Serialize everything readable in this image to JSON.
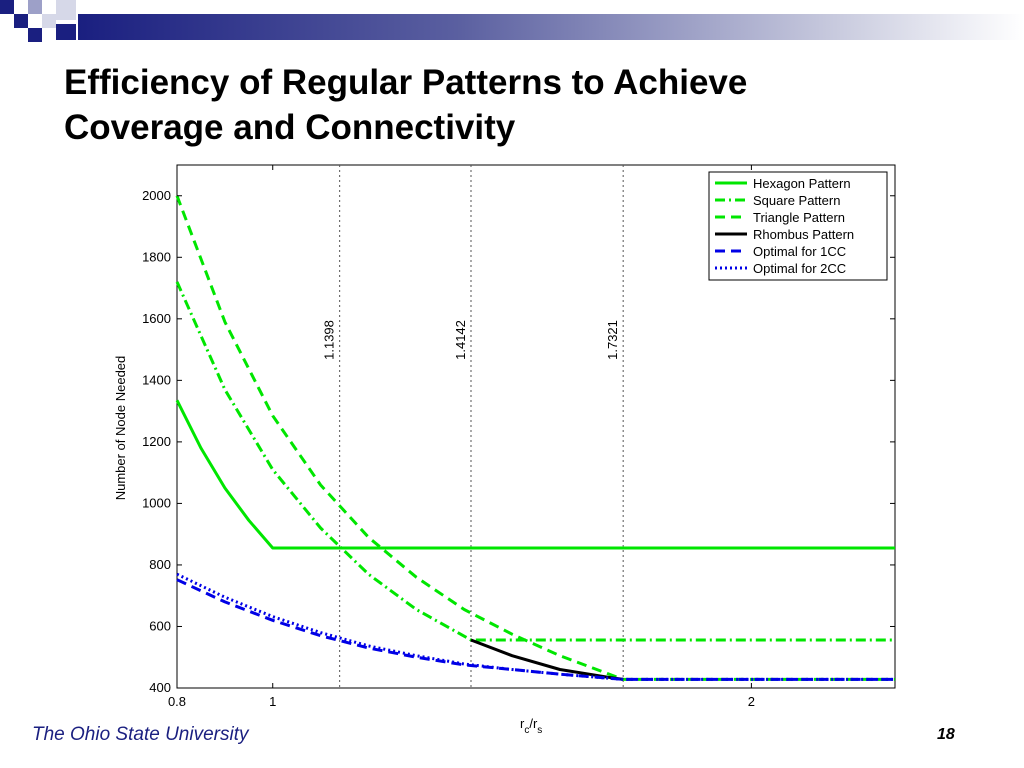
{
  "slide": {
    "title_line1": "Efficiency of Regular Patterns to Achieve",
    "title_line2": "Coverage and Connectivity",
    "footer_left": "The Ohio State University",
    "page_number": "18",
    "accent_color": "#1a1f80"
  },
  "chart_data": {
    "type": "line",
    "xlabel_main": "r",
    "xlabel_sub1": "c",
    "xlabel_slash": "/r",
    "xlabel_sub2": "s",
    "ylabel": "Number of Node Needed",
    "xlim": [
      0.8,
      2.3
    ],
    "ylim": [
      400,
      2100
    ],
    "xticks": [
      0.8,
      1,
      2
    ],
    "xtick_labels": [
      "0.8",
      "1",
      "2"
    ],
    "yticks": [
      400,
      600,
      800,
      1000,
      1200,
      1400,
      1600,
      1800,
      2000
    ],
    "ytick_labels": [
      "400",
      "600",
      "800",
      "1000",
      "1200",
      "1400",
      "1600",
      "1800",
      "2000"
    ],
    "grid": false,
    "legend_placement": "top-right",
    "vlines": [
      {
        "x": 1.1398,
        "label": "1.1398"
      },
      {
        "x": 1.4142,
        "label": "1.4142"
      },
      {
        "x": 1.7321,
        "label": "1.7321"
      }
    ],
    "series": [
      {
        "name": "Hexagon Pattern",
        "color": "#00e600",
        "dash": "solid",
        "x": [
          0.8,
          0.85,
          0.9,
          0.95,
          1.0,
          1.2,
          1.5,
          1.8,
          2.1,
          2.3
        ],
        "y": [
          1335,
          1180,
          1050,
          945,
          855,
          855,
          855,
          855,
          855,
          855
        ]
      },
      {
        "name": "Square Pattern",
        "color": "#00e600",
        "dash": "dashdot",
        "x": [
          0.8,
          0.9,
          1.0,
          1.1,
          1.2,
          1.3,
          1.4142,
          1.5,
          1.8,
          2.1,
          2.3
        ],
        "y": [
          1720,
          1370,
          1110,
          920,
          770,
          655,
          556,
          556,
          556,
          556,
          556
        ]
      },
      {
        "name": "Triangle Pattern",
        "color": "#00e600",
        "dash": "dashed",
        "x": [
          0.8,
          0.9,
          1.0,
          1.1,
          1.2,
          1.3,
          1.4,
          1.5,
          1.6,
          1.7321,
          1.9,
          2.1,
          2.3
        ],
        "y": [
          2000,
          1590,
          1285,
          1060,
          890,
          760,
          655,
          575,
          505,
          428,
          428,
          428,
          428
        ]
      },
      {
        "name": "Rhombus Pattern",
        "color": "#000000",
        "dash": "solid",
        "x": [
          1.4142,
          1.5,
          1.6,
          1.7,
          1.7321
        ],
        "y": [
          556,
          505,
          460,
          435,
          428
        ]
      },
      {
        "name": "Optimal for 1CC",
        "color": "#0000e6",
        "dash": "dashed",
        "x": [
          0.8,
          0.9,
          1.0,
          1.1,
          1.2,
          1.3,
          1.4,
          1.5,
          1.6,
          1.7321,
          1.9,
          2.1,
          2.3
        ],
        "y": [
          752,
          680,
          620,
          570,
          530,
          500,
          475,
          460,
          445,
          428,
          428,
          428,
          428
        ]
      },
      {
        "name": "Optimal for 2CC",
        "color": "#0000e6",
        "dash": "dotted",
        "x": [
          0.8,
          0.9,
          1.0,
          1.1,
          1.2,
          1.3,
          1.4,
          1.5,
          1.6,
          1.7321,
          1.9,
          2.1,
          2.3
        ],
        "y": [
          770,
          695,
          632,
          580,
          537,
          505,
          478,
          460,
          445,
          428,
          428,
          428,
          428
        ]
      }
    ]
  }
}
